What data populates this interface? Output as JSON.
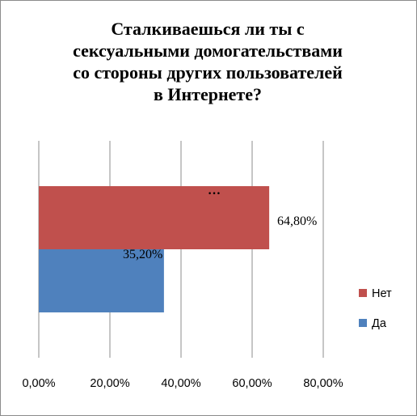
{
  "chart_data": {
    "type": "bar",
    "orientation": "horizontal",
    "title_lines": [
      "Сталкиваешься  ли ты с",
      "сексуальными домогательствами",
      "со стороны других пользователей",
      "в Интернете?"
    ],
    "series": [
      {
        "name": "Нет",
        "value": 64.8,
        "label": "64,80%",
        "color": "#c0504d"
      },
      {
        "name": "Да",
        "value": 35.2,
        "label": "35,20%",
        "color": "#4f81bd"
      }
    ],
    "xlim": [
      0,
      80
    ],
    "xticks": [
      "0,00%",
      "20,00%",
      "40,00%",
      "60,00%",
      "80,00%"
    ],
    "annotation": "…",
    "grid": true,
    "legend_position": "right"
  }
}
